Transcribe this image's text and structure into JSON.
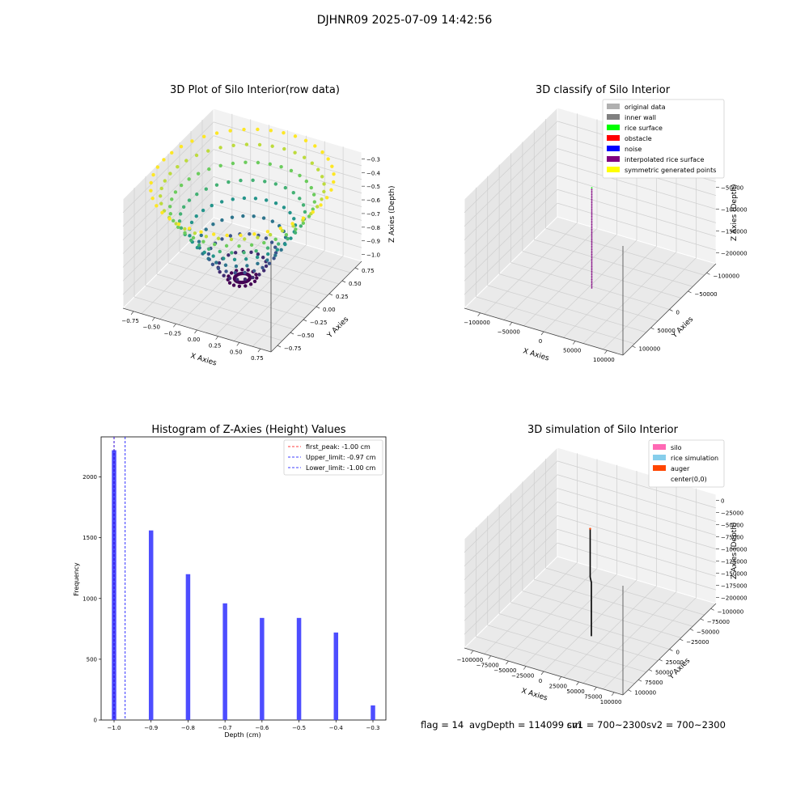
{
  "figure": {
    "suptitle": "DJHNR09 2025-07-09 14:42:56"
  },
  "panels": {
    "p1": {
      "title": "3D Plot of Silo Interior(row data)",
      "xlabel": "X Axies",
      "ylabel": "Y Axies",
      "zlabel": "Z Axies (Depth)",
      "xticks": [
        "−0.75",
        "−0.50",
        "−0.25",
        "0.00",
        "0.25",
        "0.50",
        "0.75"
      ],
      "yticks": [
        "−0.75",
        "−0.50",
        "−0.25",
        "0.00",
        "0.25",
        "0.50",
        "0.75"
      ],
      "zticks": [
        "−0.3",
        "−0.4",
        "−0.5",
        "−0.6",
        "−0.7",
        "−0.8",
        "−0.9",
        "−1.0"
      ]
    },
    "p2": {
      "title": "3D classify of Silo Interior",
      "xlabel": "X Axies",
      "ylabel": "Y Axies",
      "zlabel": "Z Axies (Depth)",
      "xticks": [
        "−100000",
        "−50000",
        "0",
        "50000",
        "100000"
      ],
      "yticks": [
        "100000",
        "50000",
        "0",
        "−50000",
        "−100000"
      ],
      "zticks": [
        "0",
        "−50000",
        "−100000",
        "−150000",
        "−200000"
      ],
      "legend": [
        {
          "label": "original data",
          "color": "#b0b0b0"
        },
        {
          "label": "inner wall",
          "color": "#808080"
        },
        {
          "label": "rice surface",
          "color": "#00ff00"
        },
        {
          "label": "obstacle",
          "color": "#ff0000"
        },
        {
          "label": "noise",
          "color": "#0000ff"
        },
        {
          "label": "interpolated rice surface",
          "color": "#800080"
        },
        {
          "label": "symmetric generated points",
          "color": "#ffff00"
        }
      ]
    },
    "p3": {
      "title": "Histogram of Z-Axies (Height) Values",
      "xlabel": "Depth (cm)",
      "ylabel": "Frequency",
      "legend": [
        {
          "label": "first_peak: -1.00 cm",
          "color": "#ff0000"
        },
        {
          "label": "Upper_limit: -0.97 cm",
          "color": "#0000ff"
        },
        {
          "label": "Lower_limit: -1.00 cm",
          "color": "#0000ff"
        }
      ]
    },
    "p4": {
      "title": "3D simulation of Silo Interior",
      "xlabel": "X Axies",
      "ylabel": "Y Axies",
      "zlabel": "Z Axies (Depth)",
      "xticks": [
        "−100000",
        "−75000",
        "−50000",
        "−25000",
        "0",
        "25000",
        "50000",
        "75000",
        "100000"
      ],
      "yticks": [
        "100000",
        "75000",
        "50000",
        "25000",
        "0",
        "−25000",
        "−50000",
        "−75000",
        "−100000"
      ],
      "zticks": [
        "0",
        "−25000",
        "−50000",
        "−75000",
        "−100000",
        "−125000",
        "−150000",
        "−175000",
        "−200000"
      ],
      "legend": [
        {
          "label": "silo",
          "color": "#ff69b4"
        },
        {
          "label": "rice simulation",
          "color": "#87ceeb"
        },
        {
          "label": "auger",
          "color": "#ff4500"
        },
        {
          "label": "center(0,0)",
          "color": "#ffffff"
        }
      ]
    }
  },
  "status": {
    "flag": "flag = 14",
    "avg_depth": "avgDepth = 114099 cm",
    "sv1": "sv1 = 700~2300",
    "sv2": "sv2 = 700~2300"
  },
  "chart_data": [
    {
      "type": "scatter",
      "title": "3D Plot of Silo Interior(row data)",
      "xlabel": "X Axies",
      "ylabel": "Y Axies",
      "zlabel": "Z Axies (Depth)",
      "xlim": [
        -0.9,
        0.9
      ],
      "ylim": [
        -0.9,
        0.9
      ],
      "zlim": [
        -1.05,
        -0.25
      ],
      "colormap": "viridis",
      "note_shape": "bowl: depth -1.0 at center rising to -0.3 at radius 0.9"
    },
    {
      "type": "scatter",
      "title": "3D classify of Silo Interior",
      "xlim": [
        -120000,
        120000
      ],
      "ylim": [
        -120000,
        120000
      ],
      "zlim": [
        -230000,
        10000
      ],
      "series": [
        {
          "name": "interpolated rice surface",
          "color": "#800080"
        }
      ]
    },
    {
      "type": "bar",
      "title": "Histogram of Z-Axies (Height) Values",
      "xlabel": "Depth (cm)",
      "ylabel": "Frequency",
      "x": [
        -1.0,
        -0.9,
        -0.8,
        -0.7,
        -0.6,
        -0.5,
        -0.4,
        -0.3
      ],
      "values": [
        2220,
        1560,
        1200,
        960,
        840,
        840,
        720,
        120
      ],
      "xlim": [
        -1.035,
        -0.265
      ],
      "ylim": [
        0,
        2330
      ],
      "xticks": [
        -1.0,
        -0.9,
        -0.8,
        -0.7,
        -0.6,
        -0.5,
        -0.4,
        -0.3
      ],
      "xtick_labels": [
        "−1.0",
        "−0.9",
        "−0.8",
        "−0.7",
        "−0.6",
        "−0.5",
        "−0.4",
        "−0.3"
      ],
      "yticks": [
        0,
        500,
        1000,
        1500,
        2000
      ],
      "bar_width": 0.012,
      "color": "#4d4dff",
      "vlines": [
        {
          "x": -1.0,
          "color": "#ff0000",
          "label": "first_peak: -1.00 cm"
        },
        {
          "x": -0.97,
          "color": "#0000ff",
          "label": "Upper_limit: -0.97 cm"
        },
        {
          "x": -1.0,
          "color": "#0000ff",
          "label": "Lower_limit: -1.00 cm"
        }
      ],
      "legend": "top-right"
    },
    {
      "type": "line",
      "title": "3D simulation of Silo Interior",
      "xlim": [
        -110000,
        110000
      ],
      "ylim": [
        -110000,
        110000
      ],
      "zlim": [
        -215000,
        5000
      ],
      "series": [
        {
          "name": "silo",
          "color": "#ff69b4"
        },
        {
          "name": "rice simulation",
          "color": "#87ceeb"
        },
        {
          "name": "auger",
          "color": "#ff4500"
        }
      ]
    }
  ]
}
